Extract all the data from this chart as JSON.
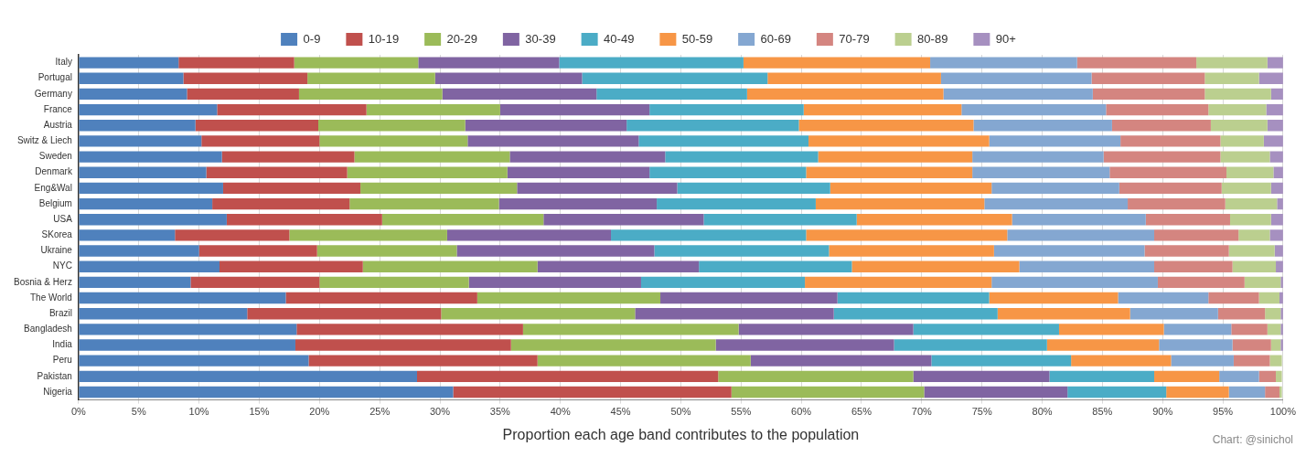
{
  "chart_data": {
    "type": "bar",
    "orientation": "horizontal",
    "stacked": true,
    "xlabel": "Proportion each age band contributes to the population",
    "annotations": [
      "Chart: @sinichol"
    ],
    "categories": [
      "Italy",
      "Portugal",
      "Germany",
      "France",
      "Austria",
      "Switz & Liech",
      "Sweden",
      "Denmark",
      "Eng&Wal",
      "Belgium",
      "USA",
      "SKorea",
      "Ukraine",
      "NYC",
      "Bosnia & Herz",
      "The World",
      "Brazil",
      "Bangladesh",
      "India",
      "Peru",
      "Pakistan",
      "Nigeria"
    ],
    "series": [
      {
        "name": "0-9",
        "color": "#4f81bd",
        "values": [
          8.3,
          8.7,
          9.0,
          11.5,
          9.7,
          10.2,
          11.9,
          10.6,
          12.0,
          11.1,
          12.3,
          8.0,
          10.0,
          11.7,
          9.3,
          17.2,
          14.0,
          18.1,
          18.0,
          19.1,
          28.1,
          31.1
        ]
      },
      {
        "name": "10-19",
        "color": "#c0504d",
        "values": [
          9.6,
          10.3,
          9.3,
          12.4,
          10.2,
          9.8,
          11.0,
          11.7,
          11.4,
          11.4,
          12.9,
          9.5,
          9.8,
          11.9,
          10.7,
          15.9,
          16.1,
          18.8,
          17.9,
          19.0,
          25.0,
          23.1
        ]
      },
      {
        "name": "20-29",
        "color": "#9bbb59",
        "values": [
          10.3,
          10.6,
          11.9,
          11.1,
          12.2,
          12.3,
          12.9,
          13.3,
          13.0,
          12.4,
          13.4,
          13.1,
          11.6,
          14.5,
          12.4,
          15.2,
          16.1,
          17.9,
          17.0,
          17.7,
          16.2,
          16.0
        ]
      },
      {
        "name": "30-39",
        "color": "#8064a2",
        "values": [
          11.7,
          12.2,
          12.8,
          12.4,
          13.4,
          14.2,
          12.9,
          11.8,
          13.3,
          13.1,
          13.3,
          13.6,
          16.4,
          13.4,
          14.3,
          14.7,
          16.5,
          14.5,
          14.8,
          15.0,
          11.3,
          11.9
        ]
      },
      {
        "name": "40-49",
        "color": "#4bacc6",
        "values": [
          15.3,
          15.4,
          12.5,
          12.8,
          14.3,
          14.1,
          12.7,
          13.0,
          12.7,
          13.2,
          12.7,
          16.2,
          14.5,
          12.7,
          13.6,
          12.6,
          13.6,
          12.1,
          12.7,
          11.6,
          8.7,
          8.2
        ]
      },
      {
        "name": "50-59",
        "color": "#f79646",
        "values": [
          15.5,
          14.4,
          16.3,
          13.1,
          14.5,
          15.0,
          12.8,
          13.8,
          13.4,
          14.0,
          12.9,
          16.7,
          13.7,
          13.9,
          15.5,
          10.7,
          11.0,
          8.7,
          9.3,
          8.3,
          5.4,
          5.2
        ]
      },
      {
        "name": "60-69",
        "color": "#84a7d1",
        "values": [
          12.2,
          12.5,
          12.4,
          12.0,
          11.5,
          10.9,
          10.9,
          11.4,
          10.6,
          11.9,
          11.1,
          12.2,
          12.5,
          11.2,
          13.8,
          7.5,
          7.3,
          5.6,
          6.1,
          5.2,
          3.3,
          3.0
        ]
      },
      {
        "name": "70-79",
        "color": "#d48580",
        "values": [
          9.9,
          9.4,
          9.3,
          8.5,
          8.2,
          8.3,
          9.7,
          9.7,
          8.5,
          8.1,
          7.0,
          7.0,
          7.0,
          6.5,
          7.2,
          4.2,
          3.9,
          3.0,
          3.2,
          3.0,
          1.4,
          1.2
        ]
      },
      {
        "name": "80-89",
        "color": "#bbcf8f",
        "values": [
          5.9,
          4.5,
          5.5,
          4.8,
          4.7,
          3.6,
          4.1,
          3.9,
          4.1,
          4.3,
          3.4,
          2.6,
          3.8,
          3.6,
          3.0,
          1.7,
          1.3,
          1.1,
          0.8,
          1.0,
          0.5,
          0.2
        ]
      },
      {
        "name": "90+",
        "color": "#a690c0",
        "values": [
          1.3,
          2.0,
          1.0,
          1.4,
          1.3,
          1.6,
          1.1,
          0.8,
          1.0,
          0.5,
          1.0,
          1.1,
          0.7,
          0.6,
          0.2,
          0.3,
          0.2,
          0.2,
          0.2,
          null,
          null,
          null
        ]
      }
    ],
    "xlim": [
      0,
      100
    ],
    "xticks": [
      {
        "value": 0,
        "label": "0%"
      },
      {
        "value": 5,
        "label": "5%"
      },
      {
        "value": 10,
        "label": "10%"
      },
      {
        "value": 15,
        "label": "15%"
      },
      {
        "value": 20,
        "label": "20%"
      },
      {
        "value": 25,
        "label": "25%"
      },
      {
        "value": 30,
        "label": "30%"
      },
      {
        "value": 35,
        "label": "35%"
      },
      {
        "value": 40,
        "label": "40%"
      },
      {
        "value": 45,
        "label": "45%"
      },
      {
        "value": 50,
        "label": "50%"
      },
      {
        "value": 55,
        "label": "55%"
      },
      {
        "value": 60,
        "label": "60%"
      },
      {
        "value": 65,
        "label": "65%"
      },
      {
        "value": 70,
        "label": "70%"
      },
      {
        "value": 75,
        "label": "75%"
      },
      {
        "value": 80,
        "label": "80%"
      },
      {
        "value": 85,
        "label": "85%"
      },
      {
        "value": 90,
        "label": "90%"
      },
      {
        "value": 95,
        "label": "95%"
      },
      {
        "value": 100,
        "label": "100%"
      }
    ],
    "grid": "x",
    "legend": "top"
  }
}
